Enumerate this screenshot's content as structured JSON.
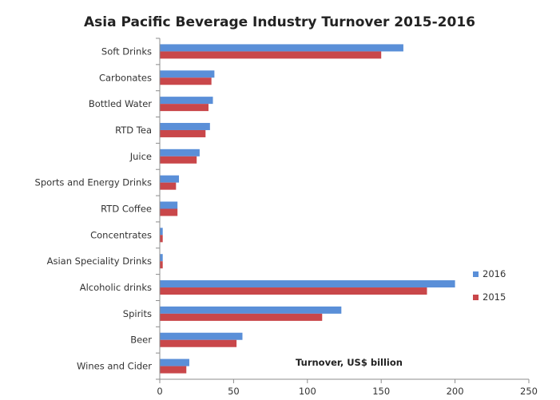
{
  "chart_data": {
    "type": "bar",
    "orientation": "horizontal",
    "title": "Asia Pacific Beverage Industry Turnover 2015-2016",
    "annotation": "Turnover, US$ billion",
    "categories": [
      "Soft Drinks",
      "Carbonates",
      "Bottled Water",
      "RTD Tea",
      "Juice",
      "Sports and Energy Drinks",
      "RTD Coffee",
      "Concentrates",
      "Asian Speciality Drinks",
      "Alcoholic drinks",
      "Spirits",
      "Beer",
      "Wines and Cider"
    ],
    "series": [
      {
        "name": "2016",
        "color": "#5a8fd8",
        "values": [
          165,
          37,
          36,
          34,
          27,
          13,
          12,
          2,
          2,
          200,
          123,
          56,
          20
        ]
      },
      {
        "name": "2015",
        "color": "#c9474a",
        "values": [
          150,
          35,
          33,
          31,
          25,
          11,
          12,
          2,
          2,
          181,
          110,
          52,
          18
        ]
      }
    ],
    "xlim": [
      0,
      250
    ],
    "xticks": [
      "0",
      "50",
      "100",
      "150",
      "200",
      "250"
    ],
    "grid": false,
    "legend_position": "right"
  }
}
